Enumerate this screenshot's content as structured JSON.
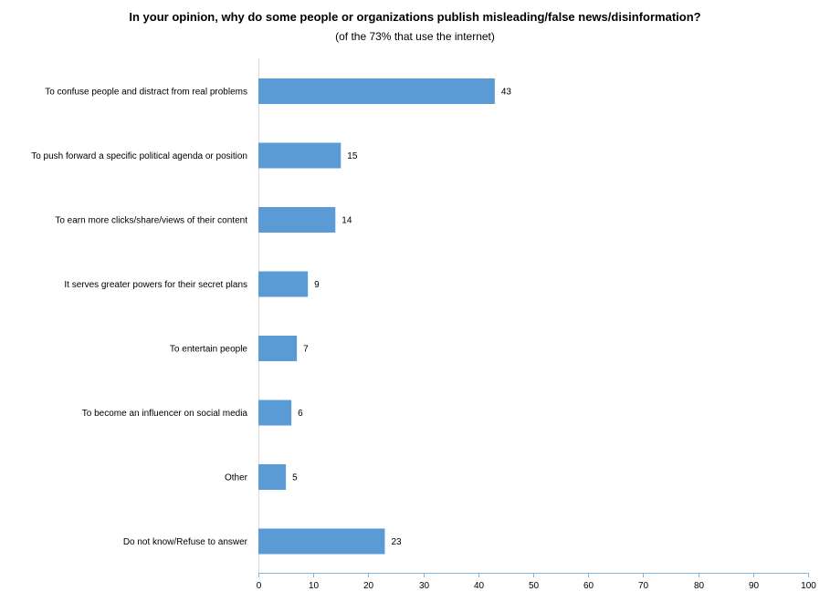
{
  "chart_data": {
    "type": "bar",
    "orientation": "horizontal",
    "title": "In your opinion, why do some people or organizations publish misleading/false news/disinformation?",
    "subtitle": "(of the 73% that use the internet)",
    "categories": [
      "To confuse people and distract from real problems",
      "To push forward a specific political agenda or position",
      "To earn more clicks/share/views of their content",
      "It serves greater powers for their secret plans",
      "To entertain people",
      "To become an influencer on social media",
      "Other",
      "Do not know/Refuse to answer"
    ],
    "values": [
      43,
      15,
      14,
      9,
      7,
      6,
      5,
      23
    ],
    "xlim": [
      0,
      100
    ],
    "xticks": [
      0,
      10,
      20,
      30,
      40,
      50,
      60,
      70,
      80,
      90,
      100
    ],
    "grid": false,
    "legend": "none",
    "bar_color": "#5b9bd5",
    "axis_color": "#86b7d9"
  }
}
